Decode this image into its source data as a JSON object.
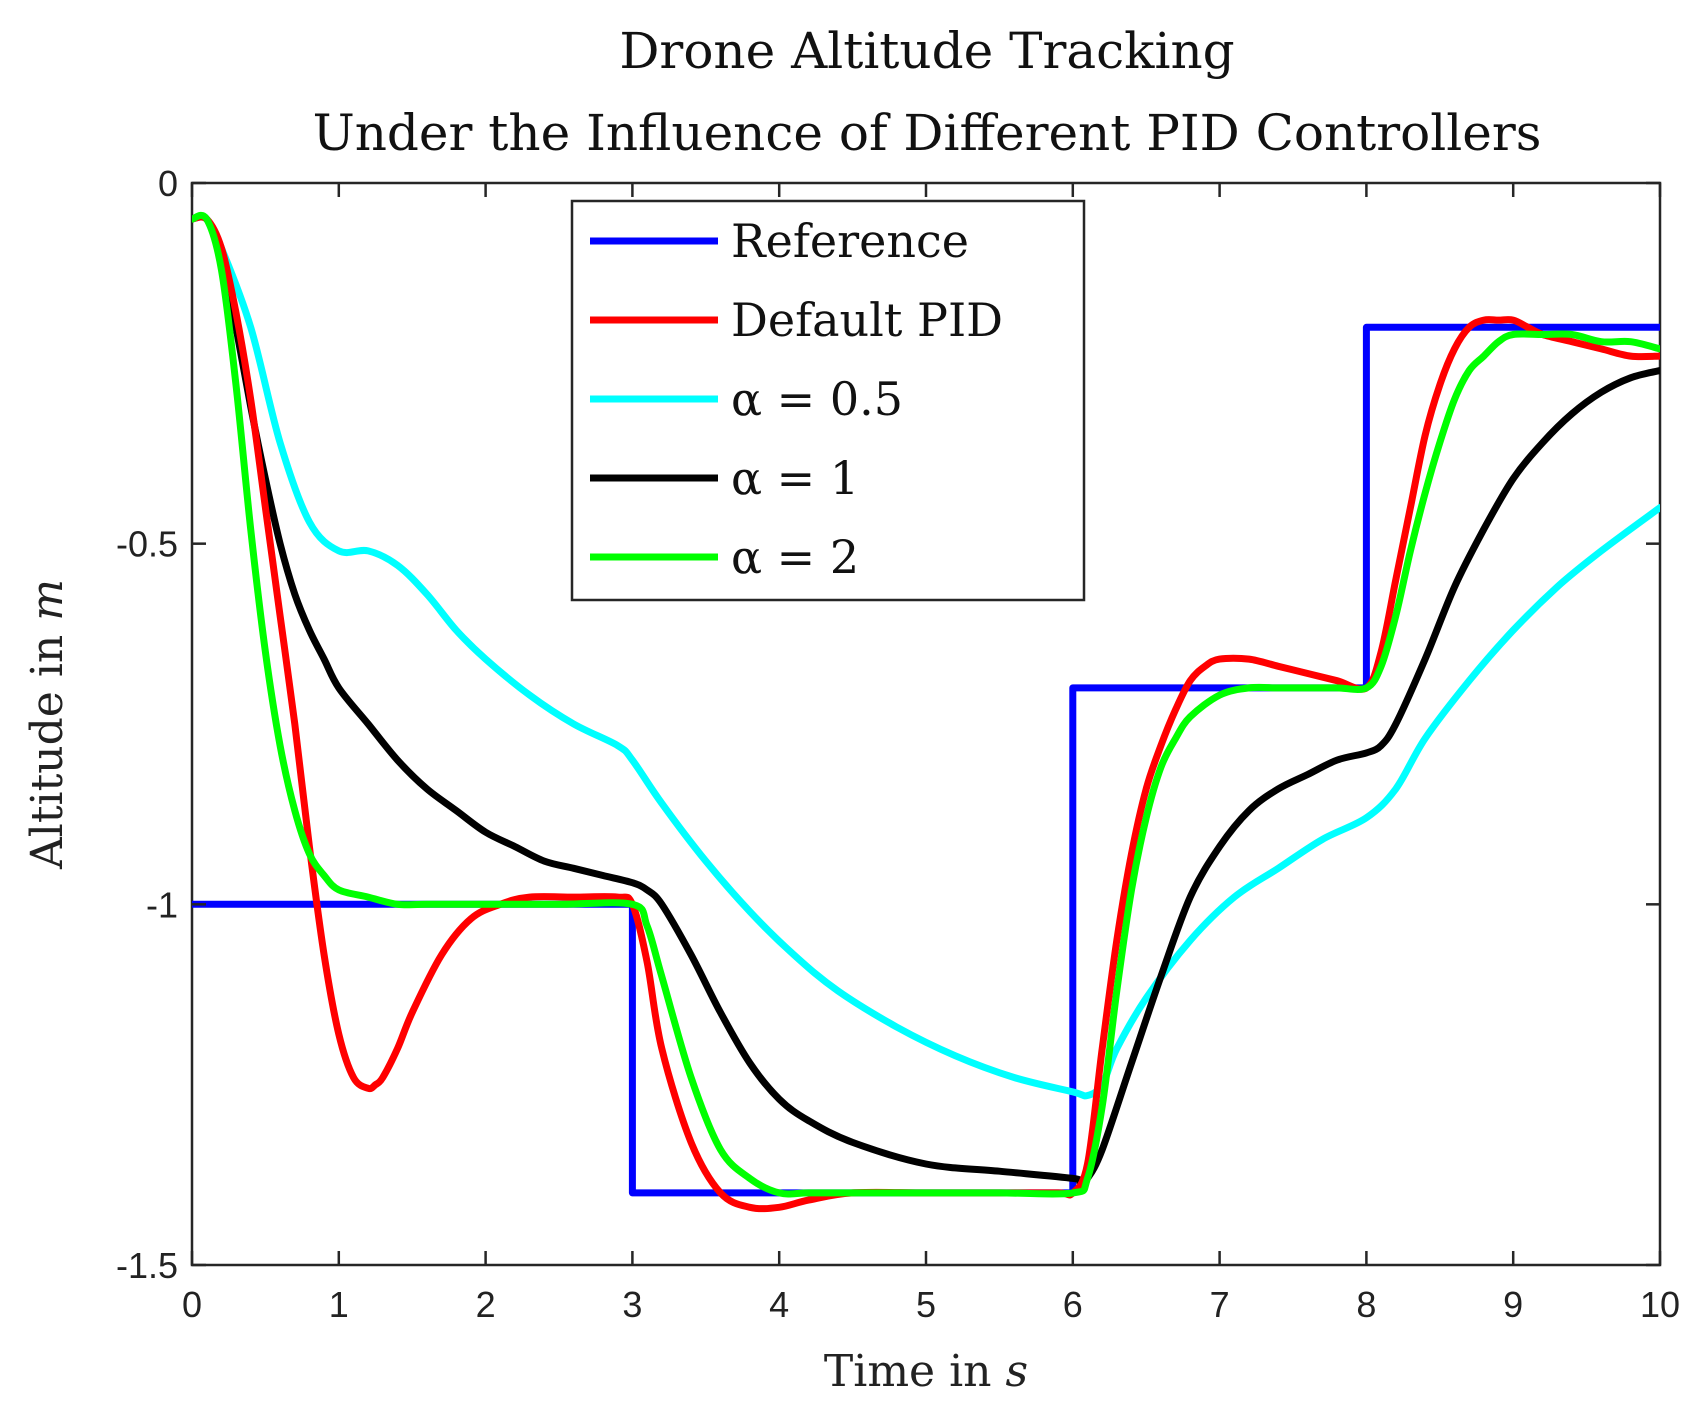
{
  "chart_data": {
    "type": "line",
    "title": [
      "Drone Altitude Tracking",
      "Under the Influence of Different PID Controllers"
    ],
    "xlabel": "Time in",
    "xlabel_var": "s",
    "ylabel": "Altitude in",
    "ylabel_var": "m",
    "xlim": [
      0,
      10
    ],
    "ylim": [
      -1.5,
      0
    ],
    "xticks": [
      0,
      1,
      2,
      3,
      4,
      5,
      6,
      7,
      8,
      9,
      10
    ],
    "xtick_labels": [
      "0",
      "1",
      "2",
      "3",
      "4",
      "5",
      "6",
      "7",
      "8",
      "9",
      "10"
    ],
    "yticks": [
      0,
      -0.5,
      -1,
      -1.5
    ],
    "ytick_labels": [
      "0",
      "-0.5",
      "-1",
      "-1.5"
    ],
    "grid": false,
    "legend_position": "top-center",
    "series": [
      {
        "name": "Reference",
        "color": "#0000ff",
        "x": [
          0,
          3,
          3,
          6,
          6,
          8,
          8,
          10
        ],
        "y": [
          -1,
          -1,
          -1.4,
          -1.4,
          -0.7,
          -0.7,
          -0.2,
          -0.2
        ]
      },
      {
        "name": "Default PID",
        "color": "#ff0000",
        "x": [
          0,
          0.1,
          0.2,
          0.3,
          0.4,
          0.5,
          0.6,
          0.7,
          0.8,
          0.9,
          1.0,
          1.1,
          1.2,
          1.25,
          1.3,
          1.4,
          1.5,
          1.7,
          1.9,
          2.1,
          2.3,
          2.6,
          2.9,
          3.0,
          3.1,
          3.2,
          3.4,
          3.6,
          3.8,
          4.0,
          4.2,
          4.5,
          5.0,
          5.5,
          5.9,
          6.0,
          6.1,
          6.2,
          6.3,
          6.4,
          6.5,
          6.6,
          6.7,
          6.8,
          6.9,
          7.0,
          7.2,
          7.4,
          7.6,
          7.8,
          8.0,
          8.1,
          8.2,
          8.3,
          8.4,
          8.5,
          8.6,
          8.7,
          8.8,
          8.9,
          9.0,
          9.1,
          9.2,
          9.4,
          9.6,
          9.8,
          10.0
        ],
        "y": [
          -0.05,
          -0.05,
          -0.09,
          -0.18,
          -0.3,
          -0.45,
          -0.6,
          -0.75,
          -0.92,
          -1.07,
          -1.18,
          -1.24,
          -1.255,
          -1.25,
          -1.24,
          -1.2,
          -1.15,
          -1.07,
          -1.02,
          -1.0,
          -0.99,
          -0.99,
          -0.99,
          -1.0,
          -1.08,
          -1.2,
          -1.33,
          -1.4,
          -1.42,
          -1.42,
          -1.41,
          -1.4,
          -1.4,
          -1.4,
          -1.4,
          -1.4,
          -1.36,
          -1.2,
          -1.05,
          -0.93,
          -0.84,
          -0.78,
          -0.73,
          -0.69,
          -0.67,
          -0.66,
          -0.66,
          -0.67,
          -0.68,
          -0.69,
          -0.7,
          -0.65,
          -0.55,
          -0.45,
          -0.35,
          -0.28,
          -0.23,
          -0.2,
          -0.19,
          -0.19,
          -0.19,
          -0.2,
          -0.21,
          -0.22,
          -0.23,
          -0.24,
          -0.24
        ]
      },
      {
        "name": "α = 0.5",
        "color": "#00ffff",
        "x": [
          0,
          0.1,
          0.2,
          0.4,
          0.6,
          0.8,
          1.0,
          1.2,
          1.4,
          1.6,
          1.8,
          2.0,
          2.3,
          2.6,
          2.9,
          3.0,
          3.2,
          3.5,
          3.8,
          4.1,
          4.4,
          4.8,
          5.2,
          5.6,
          6.0,
          6.1,
          6.2,
          6.3,
          6.5,
          6.8,
          7.1,
          7.4,
          7.7,
          8.0,
          8.2,
          8.4,
          8.7,
          9.0,
          9.3,
          9.6,
          10.0
        ],
        "y": [
          -0.05,
          -0.05,
          -0.09,
          -0.2,
          -0.36,
          -0.47,
          -0.51,
          -0.51,
          -0.53,
          -0.57,
          -0.62,
          -0.66,
          -0.71,
          -0.75,
          -0.78,
          -0.8,
          -0.86,
          -0.94,
          -1.01,
          -1.07,
          -1.12,
          -1.17,
          -1.21,
          -1.24,
          -1.26,
          -1.265,
          -1.25,
          -1.2,
          -1.13,
          -1.05,
          -0.99,
          -0.95,
          -0.91,
          -0.88,
          -0.84,
          -0.77,
          -0.69,
          -0.62,
          -0.56,
          -0.51,
          -0.45
        ]
      },
      {
        "name": "α = 1",
        "color": "#000000",
        "x": [
          0,
          0.1,
          0.2,
          0.3,
          0.4,
          0.5,
          0.6,
          0.7,
          0.8,
          0.9,
          1.0,
          1.2,
          1.4,
          1.6,
          1.8,
          2.0,
          2.2,
          2.4,
          2.6,
          2.8,
          3.0,
          3.1,
          3.2,
          3.4,
          3.6,
          3.8,
          4.0,
          4.2,
          4.5,
          5.0,
          5.5,
          6.0,
          6.05,
          6.1,
          6.2,
          6.4,
          6.6,
          6.8,
          7.0,
          7.2,
          7.4,
          7.6,
          7.8,
          8.0,
          8.1,
          8.2,
          8.4,
          8.6,
          8.8,
          9.0,
          9.2,
          9.4,
          9.6,
          9.8,
          10.0
        ],
        "y": [
          -0.05,
          -0.05,
          -0.1,
          -0.2,
          -0.31,
          -0.41,
          -0.5,
          -0.57,
          -0.62,
          -0.66,
          -0.7,
          -0.75,
          -0.8,
          -0.84,
          -0.87,
          -0.9,
          -0.92,
          -0.94,
          -0.95,
          -0.96,
          -0.97,
          -0.98,
          -1.0,
          -1.07,
          -1.15,
          -1.22,
          -1.27,
          -1.3,
          -1.33,
          -1.36,
          -1.37,
          -1.38,
          -1.385,
          -1.38,
          -1.34,
          -1.22,
          -1.1,
          -0.99,
          -0.92,
          -0.87,
          -0.84,
          -0.82,
          -0.8,
          -0.79,
          -0.78,
          -0.75,
          -0.66,
          -0.56,
          -0.48,
          -0.41,
          -0.36,
          -0.32,
          -0.29,
          -0.27,
          -0.26
        ]
      },
      {
        "name": "α = 2",
        "color": "#00ff00",
        "x": [
          0,
          0.1,
          0.2,
          0.3,
          0.4,
          0.5,
          0.6,
          0.7,
          0.8,
          0.9,
          1.0,
          1.2,
          1.4,
          1.6,
          2.0,
          2.5,
          3.0,
          3.1,
          3.2,
          3.4,
          3.6,
          3.8,
          4.0,
          4.2,
          4.5,
          5.0,
          5.5,
          6.0,
          6.1,
          6.2,
          6.3,
          6.4,
          6.5,
          6.6,
          6.7,
          6.8,
          7.0,
          7.2,
          7.4,
          7.6,
          7.8,
          8.0,
          8.1,
          8.2,
          8.3,
          8.4,
          8.5,
          8.6,
          8.7,
          8.8,
          8.9,
          9.0,
          9.2,
          9.4,
          9.6,
          9.8,
          10.0
        ],
        "y": [
          -0.05,
          -0.05,
          -0.12,
          -0.28,
          -0.48,
          -0.65,
          -0.78,
          -0.87,
          -0.93,
          -0.96,
          -0.98,
          -0.99,
          -1.0,
          -1.0,
          -1.0,
          -1.0,
          -1.0,
          -1.03,
          -1.1,
          -1.24,
          -1.34,
          -1.38,
          -1.4,
          -1.4,
          -1.4,
          -1.4,
          -1.4,
          -1.4,
          -1.38,
          -1.28,
          -1.12,
          -0.98,
          -0.88,
          -0.81,
          -0.77,
          -0.74,
          -0.71,
          -0.7,
          -0.7,
          -0.7,
          -0.7,
          -0.7,
          -0.67,
          -0.6,
          -0.51,
          -0.43,
          -0.36,
          -0.3,
          -0.26,
          -0.24,
          -0.22,
          -0.21,
          -0.21,
          -0.21,
          -0.22,
          -0.22,
          -0.23
        ]
      }
    ]
  }
}
